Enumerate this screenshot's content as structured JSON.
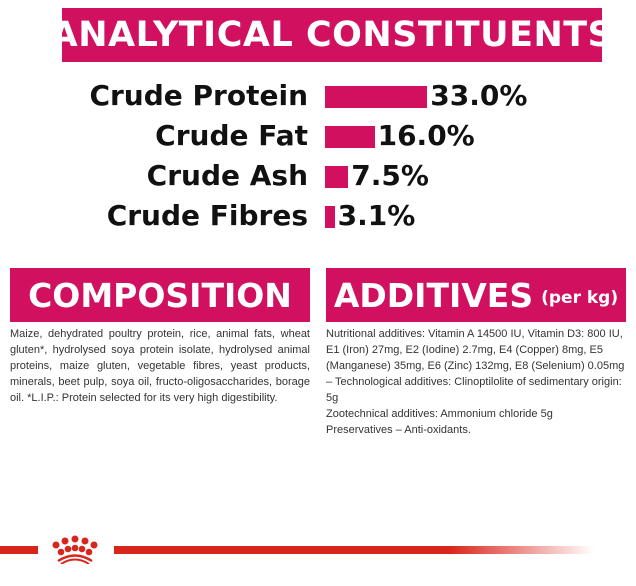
{
  "analytical": {
    "title": "ANALYTICAL CONSTITUENTS",
    "items": [
      {
        "label": "Crude Protein",
        "value": "33.0%",
        "percent": 33.0
      },
      {
        "label": "Crude Fat",
        "value": "16.0%",
        "percent": 16.0
      },
      {
        "label": "Crude Ash",
        "value": "7.5%",
        "percent": 7.5
      },
      {
        "label": "Crude Fibres",
        "value": "3.1%",
        "percent": 3.1
      }
    ]
  },
  "composition": {
    "title": "COMPOSITION",
    "text": "Maize, dehydrated poultry protein, rice, animal fats, wheat gluten*, hydrolysed soya protein isolate, hydrolysed animal proteins, maize gluten, vegetable fibres, yeast products, minerals, beet pulp, soya oil, fructo-oligosaccharides, borage oil. *L.I.P.: Protein selected for its very high digestibility."
  },
  "additives": {
    "title": "ADDITIVES",
    "unit": "(per kg)",
    "lines": [
      "Nutritional additives: Vitamin A 14500 IU, Vitamin D3: 800 IU, E1 (Iron) 27mg, E2 (Iodine) 2.7mg, E4 (Copper) 8mg, E5 (Manganese) 35mg, E6 (Zinc) 132mg, E8 (Selenium) 0.05mg – Technological additives: Clinoptilolite of sedimentary origin: 5g",
      "Zootechnical additives: Ammonium chloride 5g",
      "Preservatives – Anti-oxidants."
    ]
  },
  "colors": {
    "accent": "#d1105f",
    "brand_red": "#d9261c"
  },
  "footer": {
    "logo": "royal-canin-crown"
  }
}
